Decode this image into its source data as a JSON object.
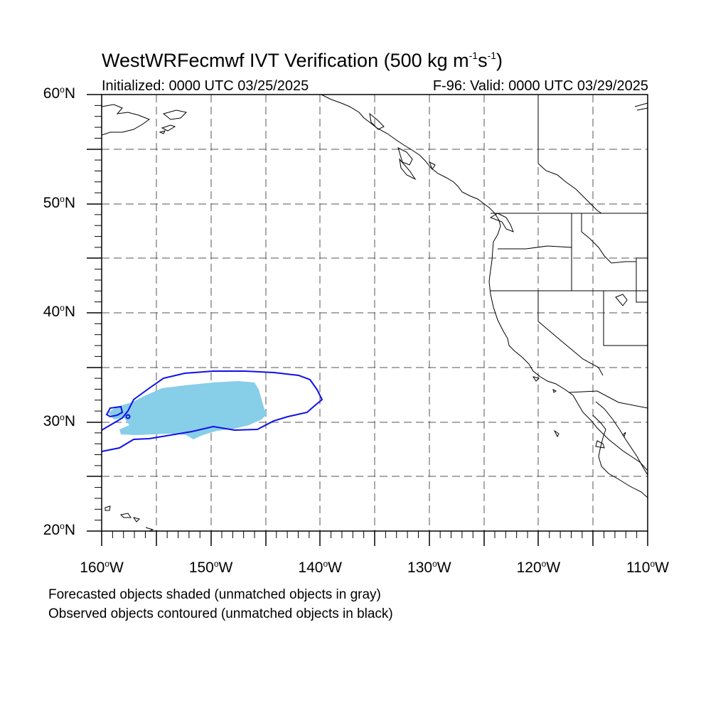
{
  "title": {
    "prefix": "WestWRFecmwf IVT Verification (500 kg m",
    "exp1": "-1",
    "mid": "s",
    "exp2": "-1",
    "suffix": ")"
  },
  "initialized_text": "Initialized: 0000 UTC 03/25/2025",
  "valid_text": "F-96: Valid: 0000 UTC 03/29/2025",
  "map": {
    "lon_range": [
      -160,
      -110
    ],
    "lat_range": [
      20,
      60
    ],
    "grid": "dashed every 5 degrees",
    "shading_color": "#87CEE8",
    "contour_color": "#1010E8",
    "coast_color": "#000000",
    "lat_ticks": [
      {
        "value": 60,
        "num": "60",
        "hemi": "N"
      },
      {
        "value": 50,
        "num": "50",
        "hemi": "N"
      },
      {
        "value": 40,
        "num": "40",
        "hemi": "N"
      },
      {
        "value": 30,
        "num": "30",
        "hemi": "N"
      },
      {
        "value": 20,
        "num": "20",
        "hemi": "N"
      }
    ],
    "lon_ticks": [
      {
        "value": -160,
        "num": "160",
        "hemi": "W"
      },
      {
        "value": -150,
        "num": "150",
        "hemi": "W"
      },
      {
        "value": -140,
        "num": "140",
        "hemi": "W"
      },
      {
        "value": -130,
        "num": "130",
        "hemi": "W"
      },
      {
        "value": -120,
        "num": "120",
        "hemi": "W"
      },
      {
        "value": -110,
        "num": "110",
        "hemi": "W"
      }
    ],
    "degree_symbol": "o"
  },
  "footnotes": [
    "Forecasted objects shaded (unmatched objects in gray)",
    "Observed objects contoured (unmatched objects in black)"
  ]
}
